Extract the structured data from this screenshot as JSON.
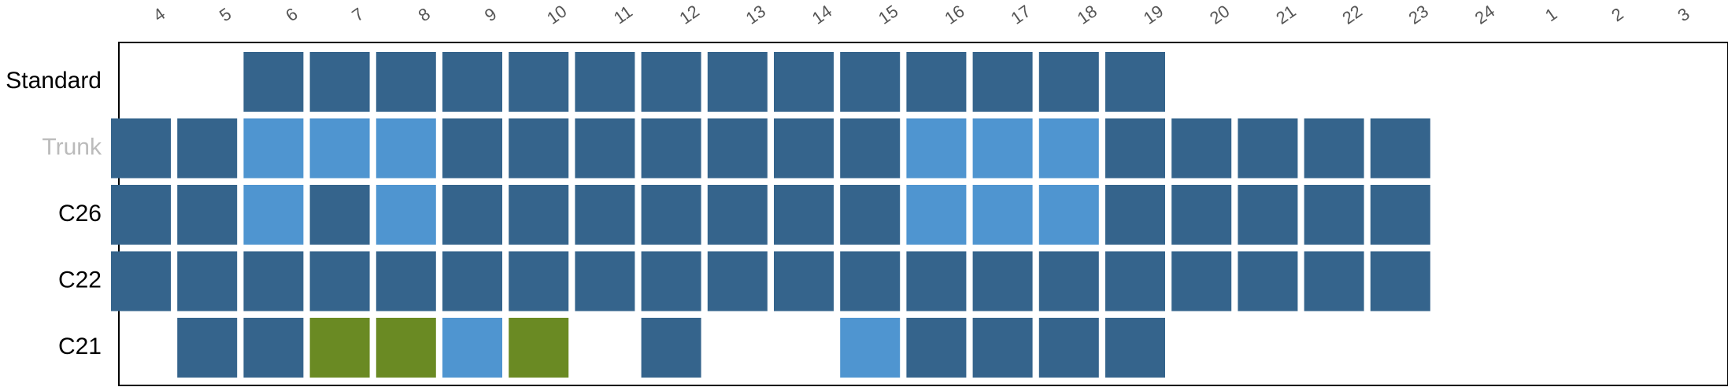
{
  "chart_data": {
    "type": "heatmap",
    "x_categories": [
      "4",
      "5",
      "6",
      "7",
      "8",
      "9",
      "10",
      "11",
      "12",
      "13",
      "14",
      "15",
      "16",
      "17",
      "18",
      "19",
      "20",
      "21",
      "22",
      "23",
      "24",
      "1",
      "2",
      "3"
    ],
    "rows": [
      {
        "label": "Standard",
        "label_color": "#000000",
        "cells": [
          null,
          null,
          "dark",
          "dark",
          "dark",
          "dark",
          "dark",
          "dark",
          "dark",
          "dark",
          "dark",
          "dark",
          "dark",
          "dark",
          "dark",
          "dark",
          null,
          null,
          null,
          null,
          null,
          null,
          null,
          null
        ]
      },
      {
        "label": "Trunk",
        "label_color": "#bbbbbb",
        "cells": [
          "dark",
          "dark",
          "light",
          "light",
          "light",
          "dark",
          "dark",
          "dark",
          "dark",
          "dark",
          "dark",
          "dark",
          "light",
          "light",
          "light",
          "dark",
          "dark",
          "dark",
          "dark",
          "dark",
          null,
          null,
          null,
          null
        ]
      },
      {
        "label": "C26",
        "label_color": "#000000",
        "cells": [
          "dark",
          "dark",
          "light",
          "dark",
          "light",
          "dark",
          "dark",
          "dark",
          "dark",
          "dark",
          "dark",
          "dark",
          "light",
          "light",
          "light",
          "dark",
          "dark",
          "dark",
          "dark",
          "dark",
          null,
          null,
          null,
          null
        ]
      },
      {
        "label": "C22",
        "label_color": "#000000",
        "cells": [
          "dark",
          "dark",
          "dark",
          "dark",
          "dark",
          "dark",
          "dark",
          "dark",
          "dark",
          "dark",
          "dark",
          "dark",
          "dark",
          "dark",
          "dark",
          "dark",
          "dark",
          "dark",
          "dark",
          "dark",
          null,
          null,
          null,
          null
        ]
      },
      {
        "label": "C21",
        "label_color": "#000000",
        "cells": [
          null,
          "dark",
          "dark",
          "green",
          "green",
          "light",
          "green",
          null,
          "dark",
          null,
          null,
          "light",
          "dark",
          "dark",
          "dark",
          "dark",
          null,
          null,
          null,
          null,
          null,
          null,
          null,
          null
        ]
      }
    ],
    "colors": {
      "dark": "#35648c",
      "light": "#4f95d0",
      "green": "#6a8a23"
    },
    "frame_color": "#000000",
    "background": "#ffffff",
    "legend": "none",
    "x_tick_position": "top",
    "x_tick_rotation": "angled"
  }
}
